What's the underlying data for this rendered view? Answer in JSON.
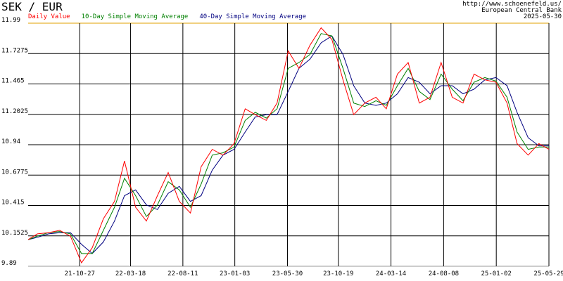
{
  "chart_data": {
    "type": "line",
    "title": "SEK / EUR",
    "source_url": "http://www.schoenefeld.us/",
    "source": "European Central Bank",
    "date": "2025-05-30",
    "x": [
      "21-06-05",
      "21-07-01",
      "21-08-01",
      "21-09-01",
      "21-10-01",
      "21-11-01",
      "21-12-01",
      "22-01-01",
      "22-02-01",
      "22-03-01",
      "22-04-01",
      "22-05-01",
      "22-06-01",
      "22-07-01",
      "22-08-01",
      "22-09-01",
      "22-10-01",
      "22-11-01",
      "22-12-01",
      "23-01-01",
      "23-02-01",
      "23-03-01",
      "23-04-01",
      "23-05-01",
      "23-06-01",
      "23-07-01",
      "23-08-01",
      "23-09-01",
      "23-10-01",
      "23-11-01",
      "23-12-01",
      "24-01-01",
      "24-02-01",
      "24-03-01",
      "24-04-01",
      "24-05-01",
      "24-06-01",
      "24-07-01",
      "24-08-01",
      "24-09-01",
      "24-10-01",
      "24-11-01",
      "24-12-01",
      "25-01-01",
      "25-02-01",
      "25-03-01",
      "25-04-01",
      "25-05-01",
      "25-05-29"
    ],
    "series": [
      {
        "name": "Daily Value",
        "color": "#ff0000",
        "values": [
          10.12,
          10.17,
          10.18,
          10.2,
          10.15,
          9.92,
          10.05,
          10.3,
          10.45,
          10.8,
          10.4,
          10.28,
          10.5,
          10.7,
          10.45,
          10.35,
          10.75,
          10.9,
          10.85,
          10.95,
          11.25,
          11.2,
          11.15,
          11.3,
          11.75,
          11.6,
          11.8,
          11.95,
          11.85,
          11.5,
          11.2,
          11.3,
          11.35,
          11.25,
          11.55,
          11.65,
          11.3,
          11.35,
          11.65,
          11.35,
          11.3,
          11.55,
          11.5,
          11.48,
          11.3,
          10.95,
          10.85,
          10.95,
          10.9
        ]
      },
      {
        "name": "10-Day Simple Moving Average",
        "color": "#008000",
        "values": [
          10.12,
          10.15,
          10.18,
          10.19,
          10.17,
          10.0,
          10.0,
          10.2,
          10.4,
          10.65,
          10.5,
          10.32,
          10.42,
          10.62,
          10.55,
          10.4,
          10.6,
          10.85,
          10.87,
          10.92,
          11.15,
          11.22,
          11.17,
          11.25,
          11.6,
          11.65,
          11.72,
          11.9,
          11.88,
          11.6,
          11.3,
          11.27,
          11.32,
          11.28,
          11.45,
          11.6,
          11.4,
          11.33,
          11.55,
          11.42,
          11.32,
          11.48,
          11.52,
          11.49,
          11.35,
          11.05,
          10.9,
          10.92,
          10.92
        ]
      },
      {
        "name": "40-Day Simple Moving Average",
        "color": "#000080",
        "values": [
          10.12,
          10.14,
          10.17,
          10.18,
          10.18,
          10.08,
          10.0,
          10.1,
          10.28,
          10.5,
          10.55,
          10.42,
          10.38,
          10.52,
          10.58,
          10.45,
          10.5,
          10.72,
          10.85,
          10.9,
          11.05,
          11.18,
          11.2,
          11.2,
          11.4,
          11.6,
          11.68,
          11.82,
          11.88,
          11.72,
          11.45,
          11.3,
          11.28,
          11.3,
          11.38,
          11.52,
          11.48,
          11.38,
          11.45,
          11.45,
          11.38,
          11.42,
          11.5,
          11.52,
          11.45,
          11.22,
          11.0,
          10.93,
          10.93
        ]
      }
    ],
    "xlim": [
      "21-06-05",
      "25-05-29"
    ],
    "xticks": [
      "21-10-27",
      "22-03-18",
      "22-08-11",
      "23-01-03",
      "23-05-30",
      "23-10-19",
      "24-03-14",
      "24-08-08",
      "25-01-02",
      "25-05-29"
    ],
    "ylim": [
      9.89,
      11.99
    ],
    "yticks": [
      9.89,
      10.1525,
      10.415,
      10.6775,
      10.94,
      11.2025,
      11.465,
      11.7275,
      11.99
    ],
    "grid": true
  }
}
